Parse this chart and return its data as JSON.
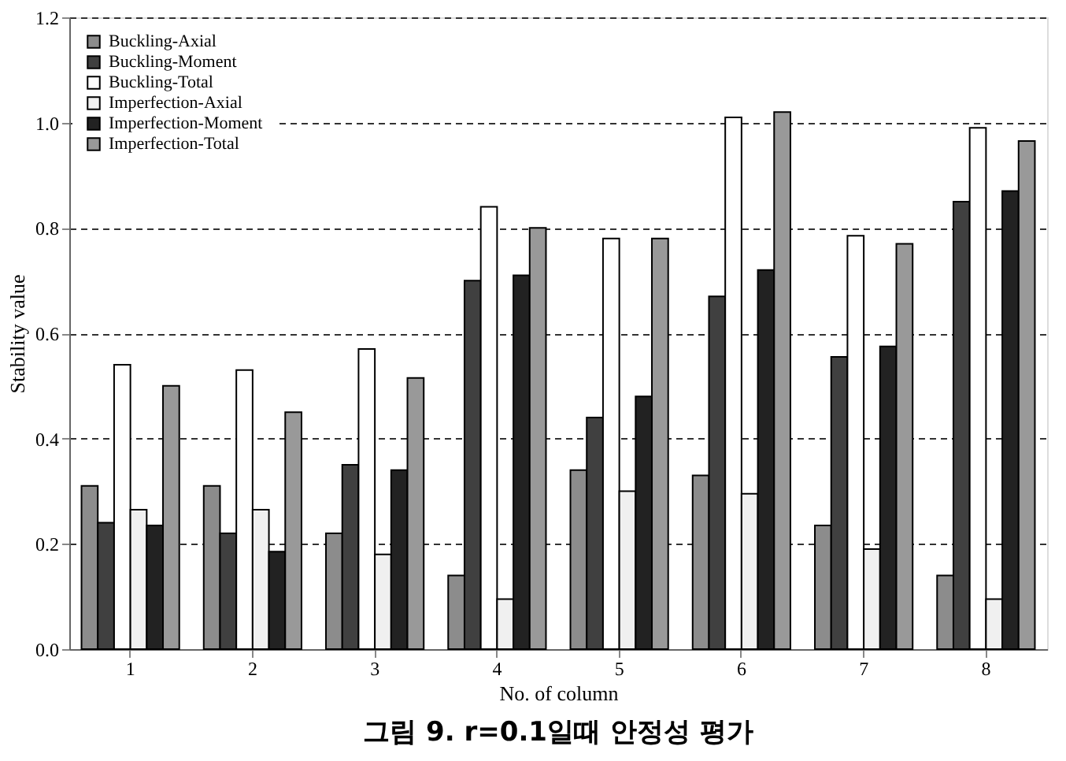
{
  "chart_data": {
    "type": "bar",
    "xlabel": "No. of column",
    "ylabel": "Stability value",
    "categories": [
      "1",
      "2",
      "3",
      "4",
      "5",
      "6",
      "7",
      "8"
    ],
    "series": [
      {
        "name": "Buckling-Axial",
        "color": "#8c8c8c",
        "values": [
          0.31,
          0.31,
          0.22,
          0.14,
          0.34,
          0.33,
          0.235,
          0.14
        ]
      },
      {
        "name": "Buckling-Moment",
        "color": "#404040",
        "values": [
          0.24,
          0.22,
          0.35,
          0.7,
          0.44,
          0.67,
          0.555,
          0.85
        ]
      },
      {
        "name": "Buckling-Total",
        "color": "#ffffff",
        "values": [
          0.54,
          0.53,
          0.57,
          0.84,
          0.78,
          1.01,
          0.785,
          0.99
        ]
      },
      {
        "name": "Imperfection-Axial",
        "color": "#f0f0f0",
        "values": [
          0.265,
          0.265,
          0.18,
          0.095,
          0.3,
          0.295,
          0.19,
          0.095
        ]
      },
      {
        "name": "Imperfection-Moment",
        "color": "#222222",
        "values": [
          0.235,
          0.185,
          0.34,
          0.71,
          0.48,
          0.72,
          0.575,
          0.87
        ]
      },
      {
        "name": "Imperfection-Total",
        "color": "#999999",
        "values": [
          0.5,
          0.45,
          0.515,
          0.8,
          0.78,
          1.02,
          0.77,
          0.965
        ]
      }
    ],
    "ylim": [
      0,
      1.2
    ],
    "yticks": [
      {
        "value": 0,
        "label": "0.0"
      },
      0.2,
      0.4,
      0.6,
      0.8,
      {
        "value": 1,
        "label": "1.0"
      },
      1.2
    ],
    "grid": "y",
    "legend": "top left",
    "annotations": [
      "그림 9. r=0.1일때 안정성 평가"
    ]
  }
}
